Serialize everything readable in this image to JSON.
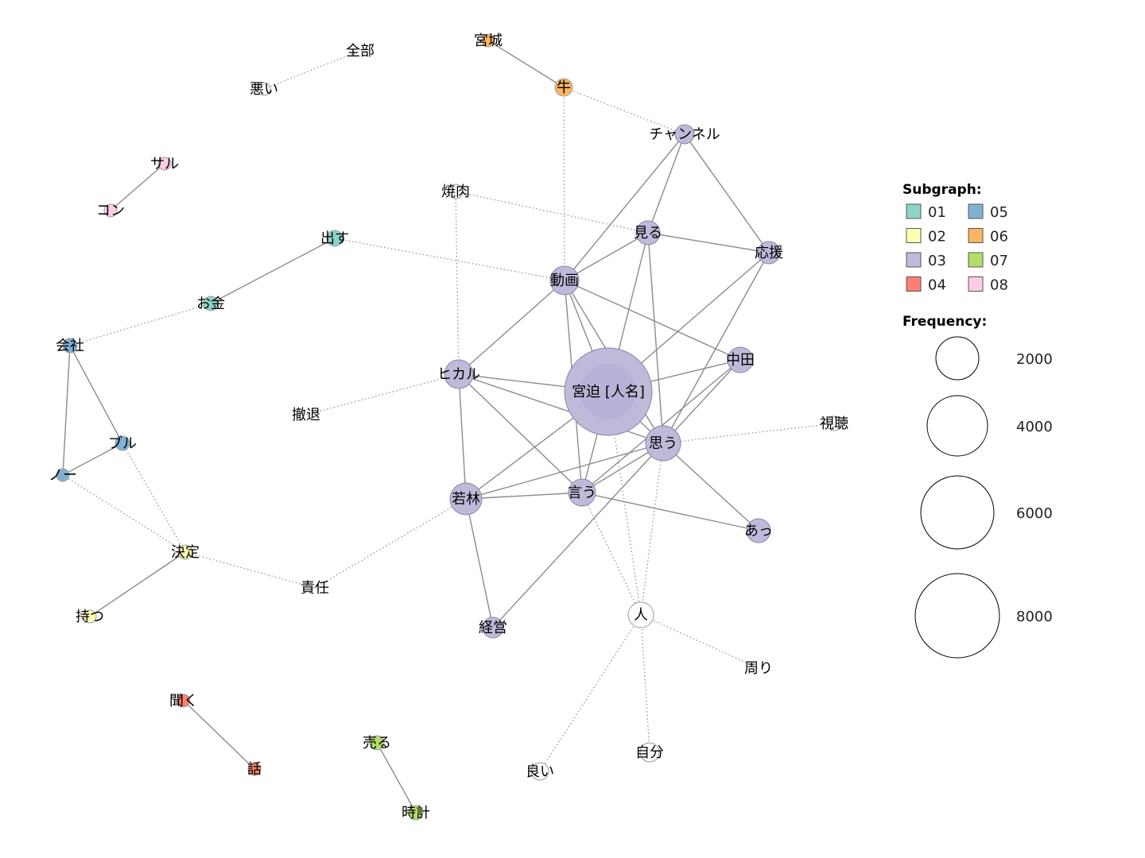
{
  "legend": {
    "subgraph_title": "Subgraph:",
    "frequency_title": "Frequency:",
    "subgraphs": [
      {
        "id": "01",
        "color": "#8dd3c7"
      },
      {
        "id": "02",
        "color": "#ffffb3"
      },
      {
        "id": "03",
        "color": "#bebada"
      },
      {
        "id": "04",
        "color": "#fb8072"
      },
      {
        "id": "05",
        "color": "#80b1d3"
      },
      {
        "id": "06",
        "color": "#fdb462"
      },
      {
        "id": "07",
        "color": "#b3de69"
      },
      {
        "id": "08",
        "color": "#fccde5"
      }
    ],
    "frequencies": [
      "2000",
      "4000",
      "6000",
      "8000"
    ]
  },
  "nodes": [
    {
      "id": "miyasako",
      "label": "宮迫 [人名]",
      "group": "03"
    },
    {
      "id": "douga",
      "label": "動画",
      "group": "03"
    },
    {
      "id": "omou",
      "label": "思う",
      "group": "03"
    },
    {
      "id": "wakabayashi",
      "label": "若林",
      "group": "03"
    },
    {
      "id": "iu",
      "label": "言う",
      "group": "03"
    },
    {
      "id": "hikaru",
      "label": "ヒカル",
      "group": "03"
    },
    {
      "id": "nakata",
      "label": "中田",
      "group": "03"
    },
    {
      "id": "miru",
      "label": "見る",
      "group": "03"
    },
    {
      "id": "ouen",
      "label": "応援",
      "group": "03"
    },
    {
      "id": "channel",
      "label": "チャンネル",
      "group": "03"
    },
    {
      "id": "a",
      "label": "あっ",
      "group": "03"
    },
    {
      "id": "keiei",
      "label": "経営",
      "group": "03"
    },
    {
      "id": "hito",
      "label": "人",
      "group": ""
    },
    {
      "id": "ushi",
      "label": "牛",
      "group": "06"
    },
    {
      "id": "miyagi",
      "label": "宮城",
      "group": "06"
    },
    {
      "id": "zenbu",
      "label": "全部",
      "group": ""
    },
    {
      "id": "warui",
      "label": "悪い",
      "group": ""
    },
    {
      "id": "saru",
      "label": "サル",
      "group": "08"
    },
    {
      "id": "kon",
      "label": "コン",
      "group": "08"
    },
    {
      "id": "yakiniku",
      "label": "焼肉",
      "group": ""
    },
    {
      "id": "dasu",
      "label": "出す",
      "group": "01"
    },
    {
      "id": "okane",
      "label": "お金",
      "group": "01"
    },
    {
      "id": "kaisha",
      "label": "会社",
      "group": "05"
    },
    {
      "id": "buru",
      "label": "ブル",
      "group": "05"
    },
    {
      "id": "no",
      "label": "ノー",
      "group": "05"
    },
    {
      "id": "kettei",
      "label": "決定",
      "group": "02"
    },
    {
      "id": "motsu",
      "label": "持つ",
      "group": "02"
    },
    {
      "id": "tettai",
      "label": "撤退",
      "group": ""
    },
    {
      "id": "sekinin",
      "label": "責任",
      "group": ""
    },
    {
      "id": "shichou",
      "label": "視聴",
      "group": ""
    },
    {
      "id": "mawari",
      "label": "周り",
      "group": ""
    },
    {
      "id": "jibun",
      "label": "自分",
      "group": ""
    },
    {
      "id": "yoi",
      "label": "良い",
      "group": ""
    },
    {
      "id": "kiku",
      "label": "聞く",
      "group": "04"
    },
    {
      "id": "hanashi",
      "label": "話",
      "group": "04"
    },
    {
      "id": "uru",
      "label": "売る",
      "group": "07"
    },
    {
      "id": "tokei",
      "label": "時計",
      "group": "07"
    }
  ],
  "edges": [
    {
      "source": "miyagi",
      "target": "ushi",
      "style": "solid"
    },
    {
      "source": "ushi",
      "target": "channel",
      "style": "dotted"
    },
    {
      "source": "ushi",
      "target": "douga",
      "style": "dotted"
    },
    {
      "source": "warui",
      "target": "zenbu",
      "style": "dotted"
    },
    {
      "source": "saru",
      "target": "kon",
      "style": "solid"
    },
    {
      "source": "yakiniku",
      "target": "miru",
      "style": "dotted"
    },
    {
      "source": "yakiniku",
      "target": "hikaru",
      "style": "dotted"
    },
    {
      "source": "dasu",
      "target": "douga",
      "style": "dotted"
    },
    {
      "source": "dasu",
      "target": "okane",
      "style": "solid"
    },
    {
      "source": "okane",
      "target": "kaisha",
      "style": "dotted"
    },
    {
      "source": "kaisha",
      "target": "no",
      "style": "solid"
    },
    {
      "source": "kaisha",
      "target": "buru",
      "style": "solid"
    },
    {
      "source": "buru",
      "target": "no",
      "style": "solid"
    },
    {
      "source": "buru",
      "target": "kettei",
      "style": "dotted"
    },
    {
      "source": "no",
      "target": "kettei",
      "style": "dotted"
    },
    {
      "source": "kettei",
      "target": "motsu",
      "style": "solid"
    },
    {
      "source": "kettei",
      "target": "sekinin",
      "style": "dotted"
    },
    {
      "source": "sekinin",
      "target": "wakabayashi",
      "style": "dotted"
    },
    {
      "source": "tettai",
      "target": "hikaru",
      "style": "dotted"
    },
    {
      "source": "channel",
      "target": "douga",
      "style": "solid"
    },
    {
      "source": "channel",
      "target": "miru",
      "style": "solid"
    },
    {
      "source": "channel",
      "target": "ouen",
      "style": "solid"
    },
    {
      "source": "miru",
      "target": "douga",
      "style": "solid"
    },
    {
      "source": "miru",
      "target": "ouen",
      "style": "solid"
    },
    {
      "source": "miru",
      "target": "miyasako",
      "style": "solid"
    },
    {
      "source": "miru",
      "target": "omou",
      "style": "solid"
    },
    {
      "source": "ouen",
      "target": "miyasako",
      "style": "solid"
    },
    {
      "source": "ouen",
      "target": "omou",
      "style": "solid"
    },
    {
      "source": "douga",
      "target": "hikaru",
      "style": "solid"
    },
    {
      "source": "douga",
      "target": "miyasako",
      "style": "solid"
    },
    {
      "source": "douga",
      "target": "nakata",
      "style": "solid"
    },
    {
      "source": "douga",
      "target": "omou",
      "style": "solid"
    },
    {
      "source": "douga",
      "target": "iu",
      "style": "solid"
    },
    {
      "source": "hikaru",
      "target": "miyasako",
      "style": "solid"
    },
    {
      "source": "hikaru",
      "target": "wakabayashi",
      "style": "solid"
    },
    {
      "source": "hikaru",
      "target": "omou",
      "style": "solid"
    },
    {
      "source": "hikaru",
      "target": "iu",
      "style": "solid"
    },
    {
      "source": "nakata",
      "target": "miyasako",
      "style": "solid"
    },
    {
      "source": "nakata",
      "target": "omou",
      "style": "solid"
    },
    {
      "source": "nakata",
      "target": "iu",
      "style": "solid"
    },
    {
      "source": "miyasako",
      "target": "omou",
      "style": "solid"
    },
    {
      "source": "miyasako",
      "target": "iu",
      "style": "solid"
    },
    {
      "source": "miyasako",
      "target": "wakabayashi",
      "style": "solid"
    },
    {
      "source": "miyasako",
      "target": "hito",
      "style": "dotted"
    },
    {
      "source": "omou",
      "target": "iu",
      "style": "solid"
    },
    {
      "source": "omou",
      "target": "wakabayashi",
      "style": "solid"
    },
    {
      "source": "omou",
      "target": "a",
      "style": "solid"
    },
    {
      "source": "omou",
      "target": "keiei",
      "style": "solid"
    },
    {
      "source": "omou",
      "target": "shichou",
      "style": "dotted"
    },
    {
      "source": "omou",
      "target": "hito",
      "style": "dotted"
    },
    {
      "source": "wakabayashi",
      "target": "iu",
      "style": "solid"
    },
    {
      "source": "wakabayashi",
      "target": "keiei",
      "style": "solid"
    },
    {
      "source": "iu",
      "target": "a",
      "style": "solid"
    },
    {
      "source": "iu",
      "target": "hito",
      "style": "dotted"
    },
    {
      "source": "hito",
      "target": "mawari",
      "style": "dotted"
    },
    {
      "source": "hito",
      "target": "jibun",
      "style": "dotted"
    },
    {
      "source": "hito",
      "target": "yoi",
      "style": "dotted"
    },
    {
      "source": "kiku",
      "target": "hanashi",
      "style": "solid"
    },
    {
      "source": "uru",
      "target": "tokei",
      "style": "solid"
    }
  ]
}
